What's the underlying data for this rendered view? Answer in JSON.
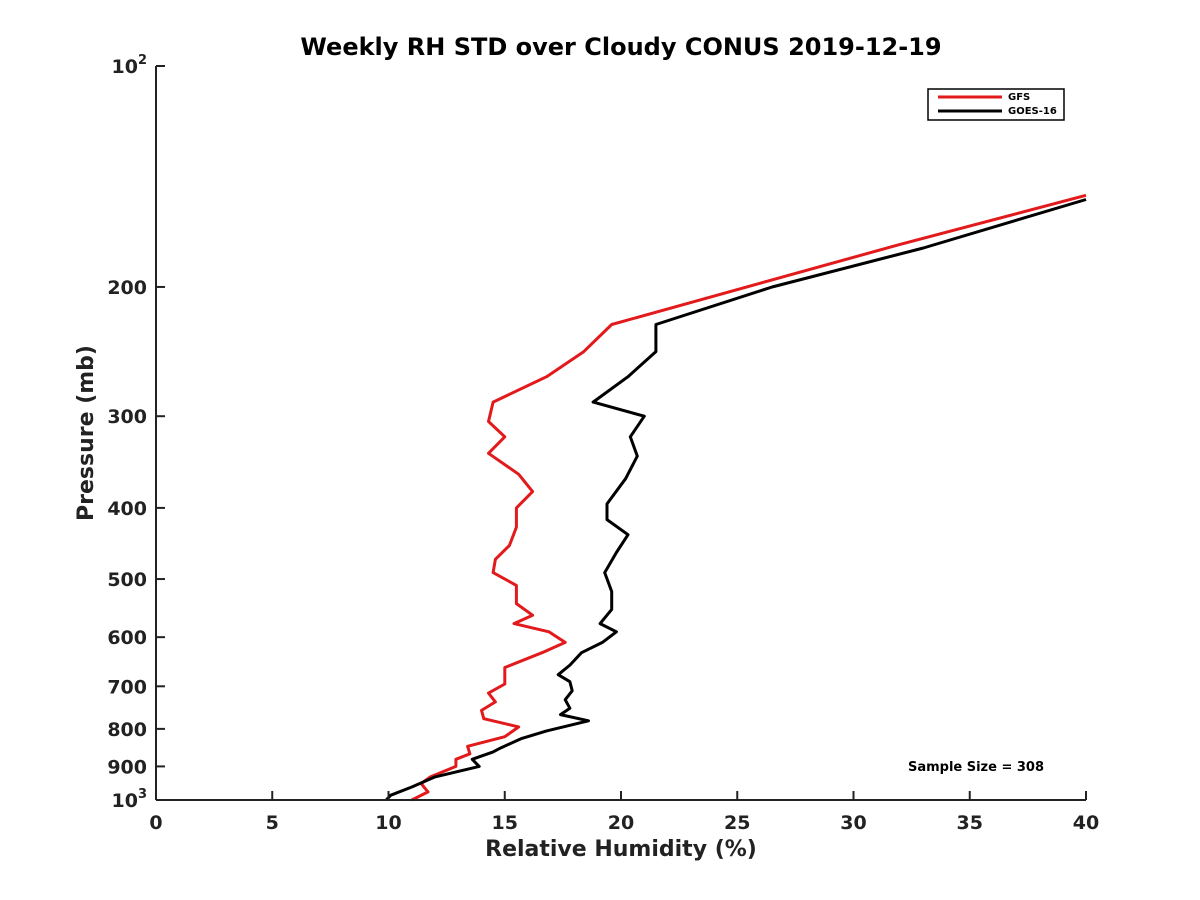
{
  "chart_data": {
    "type": "line",
    "title": "Weekly RH STD over Cloudy CONUS 2019-12-19",
    "xlabel": "Relative Humidity (%)",
    "ylabel": "Pressure (mb)",
    "xlim": [
      0,
      40
    ],
    "ylim": [
      100,
      1000
    ],
    "y_scale": "log",
    "y_reversed": true,
    "grid": false,
    "legend_position": "top-right",
    "x_ticks": [
      "0",
      "5",
      "10",
      "15",
      "20",
      "25",
      "30",
      "35",
      "40"
    ],
    "x_tick_values": [
      0,
      5,
      10,
      15,
      20,
      25,
      30,
      35,
      40
    ],
    "y_ticks": [
      {
        "value": 100,
        "base": "10",
        "exp": "2"
      },
      {
        "value": 200,
        "base": "200",
        "exp": ""
      },
      {
        "value": 300,
        "base": "300",
        "exp": ""
      },
      {
        "value": 400,
        "base": "400",
        "exp": ""
      },
      {
        "value": 500,
        "base": "500",
        "exp": ""
      },
      {
        "value": 600,
        "base": "600",
        "exp": ""
      },
      {
        "value": 700,
        "base": "700",
        "exp": ""
      },
      {
        "value": 800,
        "base": "800",
        "exp": ""
      },
      {
        "value": 900,
        "base": "900",
        "exp": ""
      },
      {
        "value": 1000,
        "base": "10",
        "exp": "3"
      }
    ],
    "annotation": "Sample Size = 308",
    "series": [
      {
        "name": "GFS",
        "color": "#e31a1c",
        "points": [
          [
            40.0,
            150
          ],
          [
            32.0,
            175
          ],
          [
            19.6,
            225
          ],
          [
            18.4,
            245
          ],
          [
            16.8,
            265
          ],
          [
            14.5,
            287
          ],
          [
            14.3,
            305
          ],
          [
            15.0,
            320
          ],
          [
            14.3,
            337
          ],
          [
            15.6,
            360
          ],
          [
            16.2,
            380
          ],
          [
            15.5,
            400
          ],
          [
            15.5,
            425
          ],
          [
            15.2,
            450
          ],
          [
            14.6,
            470
          ],
          [
            14.5,
            490
          ],
          [
            15.5,
            510
          ],
          [
            15.5,
            540
          ],
          [
            16.2,
            560
          ],
          [
            15.4,
            575
          ],
          [
            16.9,
            590
          ],
          [
            17.6,
            610
          ],
          [
            16.6,
            630
          ],
          [
            15.0,
            660
          ],
          [
            15.0,
            695
          ],
          [
            14.3,
            715
          ],
          [
            14.6,
            735
          ],
          [
            14.0,
            755
          ],
          [
            14.1,
            775
          ],
          [
            15.6,
            795
          ],
          [
            15.0,
            820
          ],
          [
            13.4,
            845
          ],
          [
            13.5,
            865
          ],
          [
            12.9,
            880
          ],
          [
            12.9,
            900
          ],
          [
            11.8,
            930
          ],
          [
            11.4,
            950
          ],
          [
            11.7,
            975
          ],
          [
            11.0,
            1000
          ]
        ]
      },
      {
        "name": "GOES-16",
        "color": "#000000",
        "points": [
          [
            40.0,
            152
          ],
          [
            33.0,
            177
          ],
          [
            26.5,
            200
          ],
          [
            21.5,
            225
          ],
          [
            21.5,
            245
          ],
          [
            20.3,
            265
          ],
          [
            18.8,
            287
          ],
          [
            21.0,
            300
          ],
          [
            20.4,
            320
          ],
          [
            20.7,
            340
          ],
          [
            20.2,
            365
          ],
          [
            19.4,
            395
          ],
          [
            19.4,
            415
          ],
          [
            20.3,
            435
          ],
          [
            19.8,
            460
          ],
          [
            19.3,
            490
          ],
          [
            19.6,
            520
          ],
          [
            19.6,
            550
          ],
          [
            19.1,
            575
          ],
          [
            19.8,
            590
          ],
          [
            19.2,
            610
          ],
          [
            18.3,
            630
          ],
          [
            17.8,
            655
          ],
          [
            17.3,
            675
          ],
          [
            17.8,
            690
          ],
          [
            17.9,
            710
          ],
          [
            17.6,
            730
          ],
          [
            17.8,
            750
          ],
          [
            17.4,
            765
          ],
          [
            18.6,
            780
          ],
          [
            16.8,
            805
          ],
          [
            15.7,
            825
          ],
          [
            14.8,
            850
          ],
          [
            14.5,
            860
          ],
          [
            13.6,
            880
          ],
          [
            13.9,
            900
          ],
          [
            12.0,
            930
          ],
          [
            11.0,
            960
          ],
          [
            10.1,
            985
          ],
          [
            9.9,
            1000
          ]
        ]
      }
    ]
  }
}
